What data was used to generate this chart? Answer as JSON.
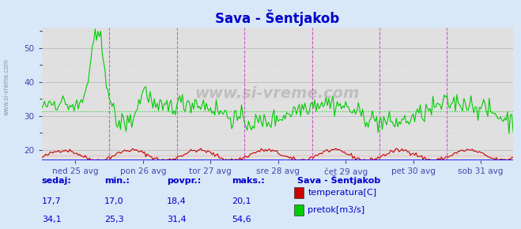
{
  "title": "Sava - Šentjakob",
  "bg_color": "#d8e8f8",
  "plot_bg_color": "#e0e0e0",
  "grid_color_major": "#c8c8c8",
  "title_color": "#0000cc",
  "tick_color": "#4444aa",
  "label_color": "#0000cc",
  "temp_color": "#cc0000",
  "flow_color": "#00cc00",
  "avg_temp_color": "#ff8888",
  "avg_flow_color": "#00cc00",
  "ymin": 17,
  "ymax": 56,
  "avg_temp": 18.4,
  "avg_flow": 31.4,
  "yticks": [
    20,
    30,
    40,
    50
  ],
  "xtick_labels": [
    "ned 25 avg",
    "pon 26 avg",
    "tor 27 avg",
    "sre 28 avg",
    "čet 29 avg",
    "pet 30 avg",
    "sob 31 avg"
  ],
  "n_points": 336,
  "watermark": "www.si-vreme.com",
  "legend_title": "Sava - Šentjakob",
  "legend_items": [
    {
      "label": "temperatura[C]",
      "color": "#cc0000"
    },
    {
      "label": "pretok[m3/s]",
      "color": "#00cc00"
    }
  ],
  "table_headers": [
    "sedaj:",
    "min.:",
    "povpr.:",
    "maks.:"
  ],
  "table_row1": [
    "17,7",
    "17,0",
    "18,4",
    "20,1"
  ],
  "table_row2": [
    "34,1",
    "25,3",
    "31,4",
    "54,6"
  ]
}
